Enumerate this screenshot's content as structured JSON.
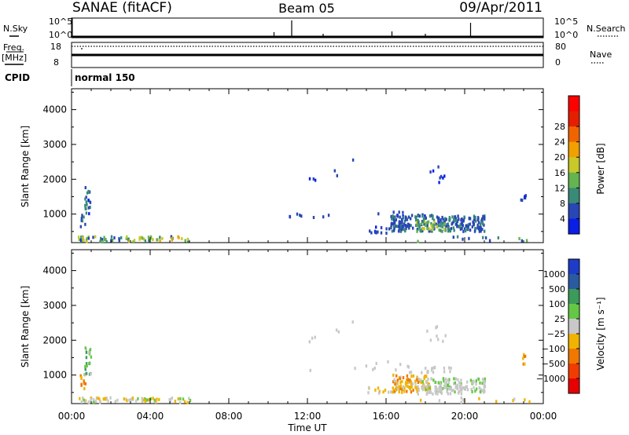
{
  "header": {
    "title": "SANAE (fitACF)",
    "beam": "Beam 05",
    "date": "09/Apr/2011"
  },
  "top_panels": {
    "nsky_label": "N.Sky",
    "nsky_ticks": [
      "10^5",
      "10^0"
    ],
    "nsearch_label": "N.Search",
    "nsearch_ticks": [
      "10^5",
      "10^0"
    ],
    "freq_label": "Freq.",
    "freq_unit": "[MHz]",
    "freq_ticks": [
      "18",
      "8"
    ],
    "nave_label": "Nave",
    "nave_ticks": [
      "80",
      "0"
    ],
    "cpid_label": "CPID",
    "cpid_value": "normal 150"
  },
  "time_axis": {
    "label": "Time UT",
    "ticks": [
      "00:00",
      "04:00",
      "08:00",
      "12:00",
      "16:00",
      "20:00",
      "00:00"
    ]
  },
  "colors": {
    "power": [
      "#0a1ee6",
      "#2846b4",
      "#3a8a78",
      "#64b450",
      "#c8c828",
      "#f0a000",
      "#f06400",
      "#e61e00",
      "#ff0000"
    ],
    "velocity": [
      "#e60000",
      "#f03c00",
      "#f07800",
      "#f0b400",
      "#c8c8c8",
      "#64c846",
      "#3c9a5a",
      "#2a5aa0",
      "#1e3cc8"
    ]
  },
  "chart_data": [
    {
      "type": "heatmap",
      "name": "power",
      "ylabel": "Slant Range [km]",
      "xlabel": "Time UT",
      "ylim": [
        180,
        4600
      ],
      "yticks": [
        1000,
        2000,
        3000,
        4000
      ],
      "xlim_hours": [
        0,
        24
      ],
      "colorbar_label": "Power [dB]",
      "colorbar_ticks": [
        "4",
        "8",
        "12",
        "16",
        "20",
        "24",
        "28"
      ],
      "colorbar_range": [
        0,
        30
      ],
      "blobs": [
        {
          "t": [
            0.6,
            0.95
          ],
          "r": [
            1000,
            1800
          ],
          "v": [
            3,
            10
          ],
          "n": 22
        },
        {
          "t": [
            0.4,
            0.7
          ],
          "r": [
            600,
            1000
          ],
          "v": [
            3,
            8
          ],
          "n": 8
        },
        {
          "t": [
            0.3,
            6.0
          ],
          "r": [
            200,
            350
          ],
          "v": [
            3,
            18
          ],
          "n": 70
        },
        {
          "t": [
            12.0,
            12.5
          ],
          "r": [
            1900,
            2100
          ],
          "v": [
            3,
            4
          ],
          "n": 3
        },
        {
          "t": [
            13.3,
            13.6
          ],
          "r": [
            2100,
            2300
          ],
          "v": [
            3,
            4
          ],
          "n": 2
        },
        {
          "t": [
            14.2,
            14.4
          ],
          "r": [
            2500,
            2600
          ],
          "v": [
            3,
            4
          ],
          "n": 1
        },
        {
          "t": [
            18.0,
            19.0
          ],
          "r": [
            1900,
            2400
          ],
          "v": [
            3,
            4
          ],
          "n": 8
        },
        {
          "t": [
            10.8,
            13.8
          ],
          "r": [
            880,
            1000
          ],
          "v": [
            3,
            5
          ],
          "n": 8
        },
        {
          "t": [
            15.5,
            18.5
          ],
          "r": [
            880,
            1100
          ],
          "v": [
            3,
            5
          ],
          "n": 14
        },
        {
          "t": [
            16.2,
            21.0
          ],
          "r": [
            500,
            950
          ],
          "v": [
            4,
            8
          ],
          "n": 260
        },
        {
          "t": [
            17.5,
            19.0
          ],
          "r": [
            500,
            800
          ],
          "v": [
            8,
            16
          ],
          "n": 40
        },
        {
          "t": [
            15.0,
            17.0
          ],
          "r": [
            450,
            650
          ],
          "v": [
            3,
            5
          ],
          "n": 20
        },
        {
          "t": [
            22.8,
            23.1
          ],
          "r": [
            1300,
            1600
          ],
          "v": [
            3,
            5
          ],
          "n": 6
        },
        {
          "t": [
            16.5,
            24.0
          ],
          "r": [
            200,
            350
          ],
          "v": [
            3,
            12
          ],
          "n": 12
        }
      ]
    },
    {
      "type": "heatmap",
      "name": "velocity",
      "ylabel": "Slant Range [km]",
      "xlabel": "Time UT",
      "ylim": [
        180,
        4600
      ],
      "yticks": [
        1000,
        2000,
        3000,
        4000
      ],
      "xlim_hours": [
        0,
        24
      ],
      "colorbar_label": "Velocity [m s⁻¹]",
      "colorbar_ticks": [
        "1000",
        "500",
        "100",
        "25",
        "−25",
        "−100",
        "−500",
        "−1000"
      ],
      "colorbar_range": [
        -1200,
        1200
      ],
      "blobs": [
        {
          "t": [
            0.6,
            0.95
          ],
          "r": [
            1000,
            1800
          ],
          "v": [
            0,
            600
          ],
          "n": 22
        },
        {
          "t": [
            0.4,
            0.7
          ],
          "r": [
            600,
            1000
          ],
          "v": [
            -600,
            -80
          ],
          "n": 10
        },
        {
          "t": [
            0.3,
            6.0
          ],
          "r": [
            200,
            350
          ],
          "v": [
            -300,
            200
          ],
          "n": 70
        },
        {
          "t": [
            12.0,
            12.5
          ],
          "r": [
            1900,
            2100
          ],
          "v": [
            -20,
            20
          ],
          "n": 3
        },
        {
          "t": [
            13.3,
            13.6
          ],
          "r": [
            2100,
            2300
          ],
          "v": [
            -20,
            20
          ],
          "n": 2
        },
        {
          "t": [
            14.2,
            14.4
          ],
          "r": [
            2500,
            2600
          ],
          "v": [
            -20,
            20
          ],
          "n": 1
        },
        {
          "t": [
            18.0,
            19.0
          ],
          "r": [
            1900,
            2400
          ],
          "v": [
            -20,
            20
          ],
          "n": 8
        },
        {
          "t": [
            12.0,
            19.0
          ],
          "r": [
            1100,
            1400
          ],
          "v": [
            -20,
            20
          ],
          "n": 14
        },
        {
          "t": [
            17.0,
            19.5
          ],
          "r": [
            1050,
            1250
          ],
          "v": [
            -20,
            20
          ],
          "n": 16
        },
        {
          "t": [
            16.3,
            18.2
          ],
          "r": [
            500,
            1000
          ],
          "v": [
            -500,
            -60
          ],
          "n": 110
        },
        {
          "t": [
            17.8,
            21.0
          ],
          "r": [
            500,
            900
          ],
          "v": [
            30,
            200
          ],
          "n": 110
        },
        {
          "t": [
            17.5,
            20.0
          ],
          "r": [
            450,
            700
          ],
          "v": [
            -20,
            20
          ],
          "n": 40
        },
        {
          "t": [
            15.0,
            17.0
          ],
          "r": [
            450,
            650
          ],
          "v": [
            -300,
            -30
          ],
          "n": 18
        },
        {
          "t": [
            22.8,
            23.1
          ],
          "r": [
            1300,
            1600
          ],
          "v": [
            -700,
            -200
          ],
          "n": 6
        },
        {
          "t": [
            16.5,
            24.0
          ],
          "r": [
            200,
            350
          ],
          "v": [
            -300,
            100
          ],
          "n": 12
        }
      ]
    }
  ]
}
